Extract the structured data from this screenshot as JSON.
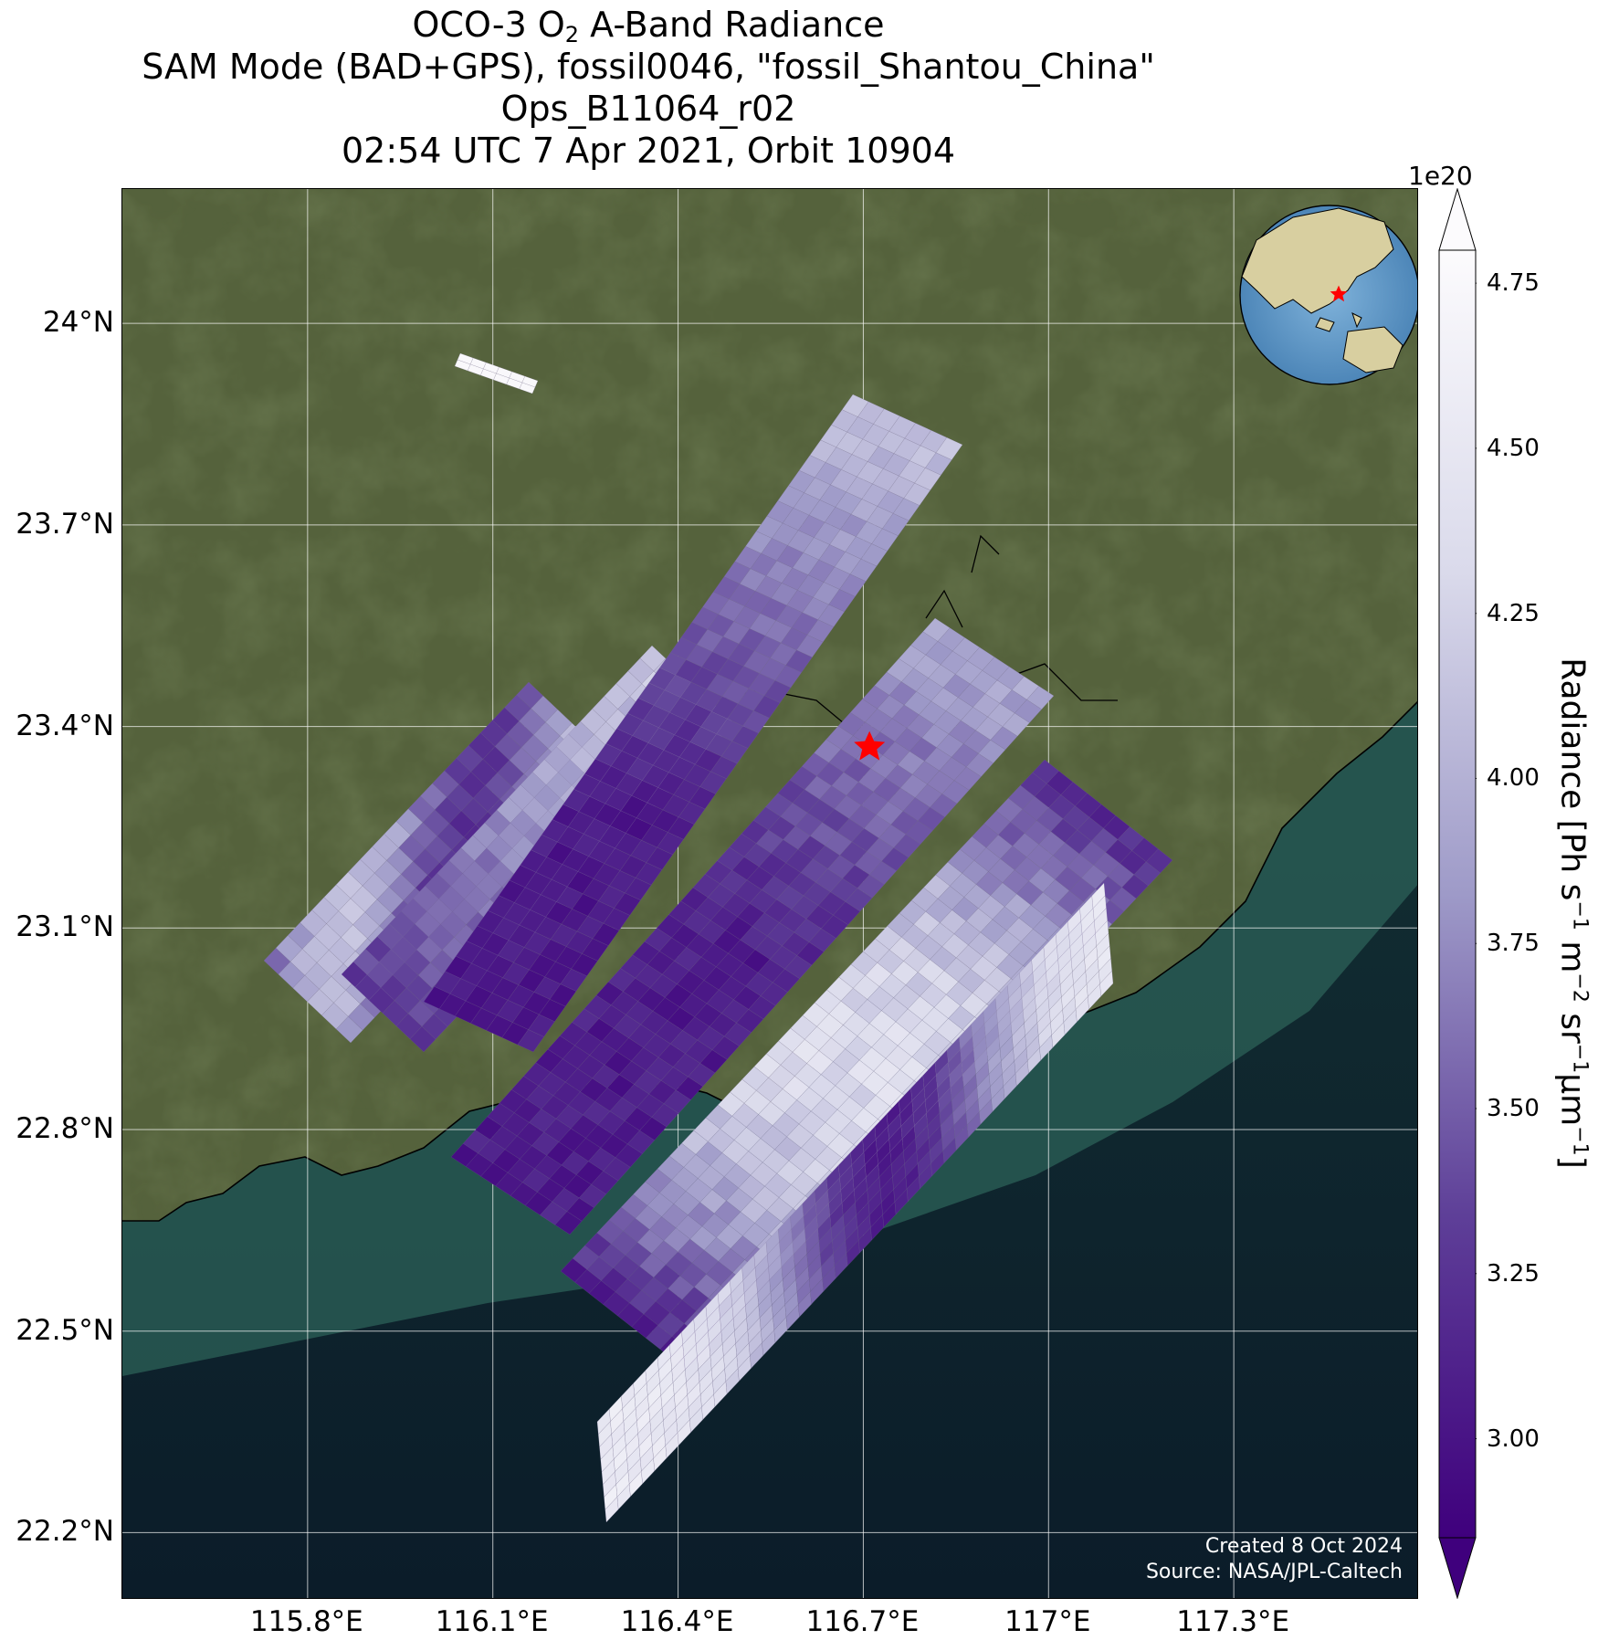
{
  "title": {
    "line1_prefix": "OCO-3 O",
    "line1_sub": "2",
    "line1_suffix": " A-Band Radiance",
    "line2": "SAM Mode (BAD+GPS), fossil0046, \"fossil_Shantou_China\"",
    "line3": "Ops_B11064_r02",
    "line4": "02:54 UTC 7 Apr 2021, Orbit 10904"
  },
  "axes": {
    "lat_labels": [
      "24°N",
      "23.7°N",
      "23.4°N",
      "23.1°N",
      "22.8°N",
      "22.5°N",
      "22.2°N"
    ],
    "lon_labels": [
      "115.8°E",
      "116.1°E",
      "116.4°E",
      "116.7°E",
      "117°E",
      "117.3°E"
    ],
    "lat_values": [
      24.0,
      23.7,
      23.4,
      23.1,
      22.8,
      22.5,
      22.2
    ],
    "lon_values": [
      115.8,
      116.1,
      116.4,
      116.7,
      117.0,
      117.3
    ],
    "lon_range": [
      115.5,
      117.6
    ],
    "lat_range": [
      22.1,
      24.2
    ]
  },
  "target": {
    "lon": 116.71,
    "lat": 23.37,
    "marker": "red-star"
  },
  "credit": {
    "line1": "Created 8 Oct 2024",
    "line2": "Source: NASA/JPL-Caltech"
  },
  "colorbar": {
    "label": "Radiance [Ph s",
    "exponent": "1e20",
    "ticks": [
      "4.75",
      "4.50",
      "4.25",
      "4.00",
      "3.75",
      "3.50",
      "3.25",
      "3.00"
    ],
    "tick_values": [
      4.75,
      4.5,
      4.25,
      4.0,
      3.75,
      3.5,
      3.25,
      3.0
    ],
    "range": [
      2.85,
      4.8
    ],
    "extend": "both",
    "colormap": "Purples_r",
    "color_low": "#3f007d",
    "color_high": "#fcfbfd"
  },
  "colors": {
    "land": "#4e5a37",
    "sea": "#0d1e2a",
    "coast_water": "#2a5a52",
    "grid": "#ffffff"
  }
}
